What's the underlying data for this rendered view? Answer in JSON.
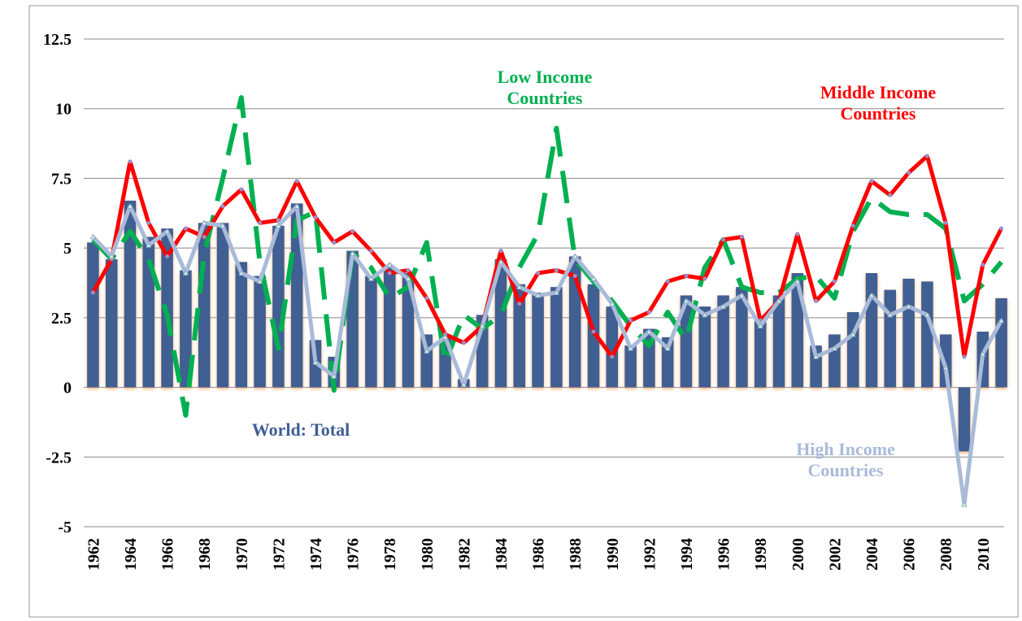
{
  "chart_data": {
    "type": "bar-line",
    "categories": [
      "1962",
      null,
      "1964",
      null,
      "1966",
      null,
      "1968",
      null,
      "1970",
      null,
      "1972",
      null,
      "1974",
      null,
      "1976",
      null,
      "1978",
      null,
      "1980",
      null,
      "1982",
      null,
      "1984",
      null,
      "1986",
      null,
      "1988",
      null,
      "1990",
      null,
      "1992",
      null,
      "1994",
      null,
      "1996",
      null,
      "1998",
      null,
      "2000",
      null,
      "2002",
      null,
      "2004",
      null,
      "2006",
      null,
      "2008",
      null,
      "2010",
      null
    ],
    "ylim": [
      -5,
      12.5
    ],
    "yticks": [
      -5,
      -2.5,
      0,
      2.5,
      5,
      7.5,
      10,
      12.5
    ],
    "grid": true,
    "series": [
      {
        "name": "World: Total",
        "kind": "bar",
        "color": "#3f5f93",
        "values": [
          5.2,
          4.6,
          6.7,
          5.4,
          5.7,
          4.2,
          5.9,
          5.9,
          4.5,
          4.0,
          5.8,
          6.6,
          1.7,
          1.1,
          4.9,
          4.0,
          4.3,
          4.1,
          1.9,
          1.9,
          0.3,
          2.6,
          4.6,
          3.7,
          3.4,
          3.6,
          4.7,
          3.7,
          2.9,
          1.5,
          2.1,
          1.8,
          3.3,
          2.9,
          3.3,
          3.6,
          2.4,
          3.3,
          4.1,
          1.5,
          1.9,
          2.7,
          4.1,
          3.5,
          3.9,
          3.8,
          1.9,
          -2.3,
          2.0,
          3.2
        ]
      },
      {
        "name": "Low Income Countries",
        "kind": "dashed",
        "color": "#00b050",
        "values": [
          5.3,
          4.6,
          5.6,
          4.6,
          2.6,
          -1.0,
          4.8,
          7.5,
          10.4,
          4.5,
          1.4,
          6.0,
          6.3,
          -0.1,
          4.8,
          4.3,
          3.2,
          3.6,
          5.2,
          0.9,
          2.6,
          2.1,
          2.6,
          4.3,
          5.5,
          9.3,
          4.6,
          3.8,
          3.1,
          2.2,
          1.5,
          2.7,
          1.7,
          4.3,
          5.3,
          3.6,
          3.4,
          3.4,
          3.9,
          4.0,
          3.2,
          5.6,
          6.8,
          6.3,
          6.2,
          6.2,
          5.7,
          3.1,
          3.7,
          4.5
        ]
      },
      {
        "name": "Middle Income Countries",
        "kind": "line",
        "color": "#ff0000",
        "values": [
          3.4,
          4.6,
          8.1,
          5.9,
          4.7,
          5.7,
          5.4,
          6.5,
          7.1,
          5.9,
          6.0,
          7.4,
          6.1,
          5.2,
          5.6,
          4.9,
          4.1,
          4.2,
          3.2,
          1.9,
          1.6,
          2.2,
          4.9,
          3.0,
          4.1,
          4.2,
          4.0,
          2.0,
          1.1,
          2.4,
          2.7,
          3.8,
          4.0,
          3.9,
          5.3,
          5.4,
          2.4,
          3.1,
          5.5,
          3.1,
          3.8,
          5.8,
          7.4,
          6.9,
          7.7,
          8.3,
          5.9,
          1.1,
          4.4,
          5.7
        ]
      },
      {
        "name": "High Income Countries",
        "kind": "triangle-line",
        "color": "#a9bbd9",
        "values": [
          5.4,
          4.7,
          6.5,
          5.1,
          5.6,
          4.1,
          5.9,
          5.8,
          4.1,
          3.8,
          5.8,
          6.5,
          0.9,
          0.4,
          4.8,
          3.9,
          4.4,
          3.9,
          1.3,
          1.8,
          0.1,
          2.2,
          4.5,
          3.6,
          3.3,
          3.4,
          4.7,
          3.9,
          3.0,
          1.4,
          2.0,
          1.4,
          3.1,
          2.6,
          2.9,
          3.3,
          2.2,
          3.1,
          3.8,
          1.1,
          1.4,
          1.9,
          3.3,
          2.6,
          2.9,
          2.6,
          0.7,
          -4.2,
          1.2,
          2.4
        ]
      }
    ]
  }
}
